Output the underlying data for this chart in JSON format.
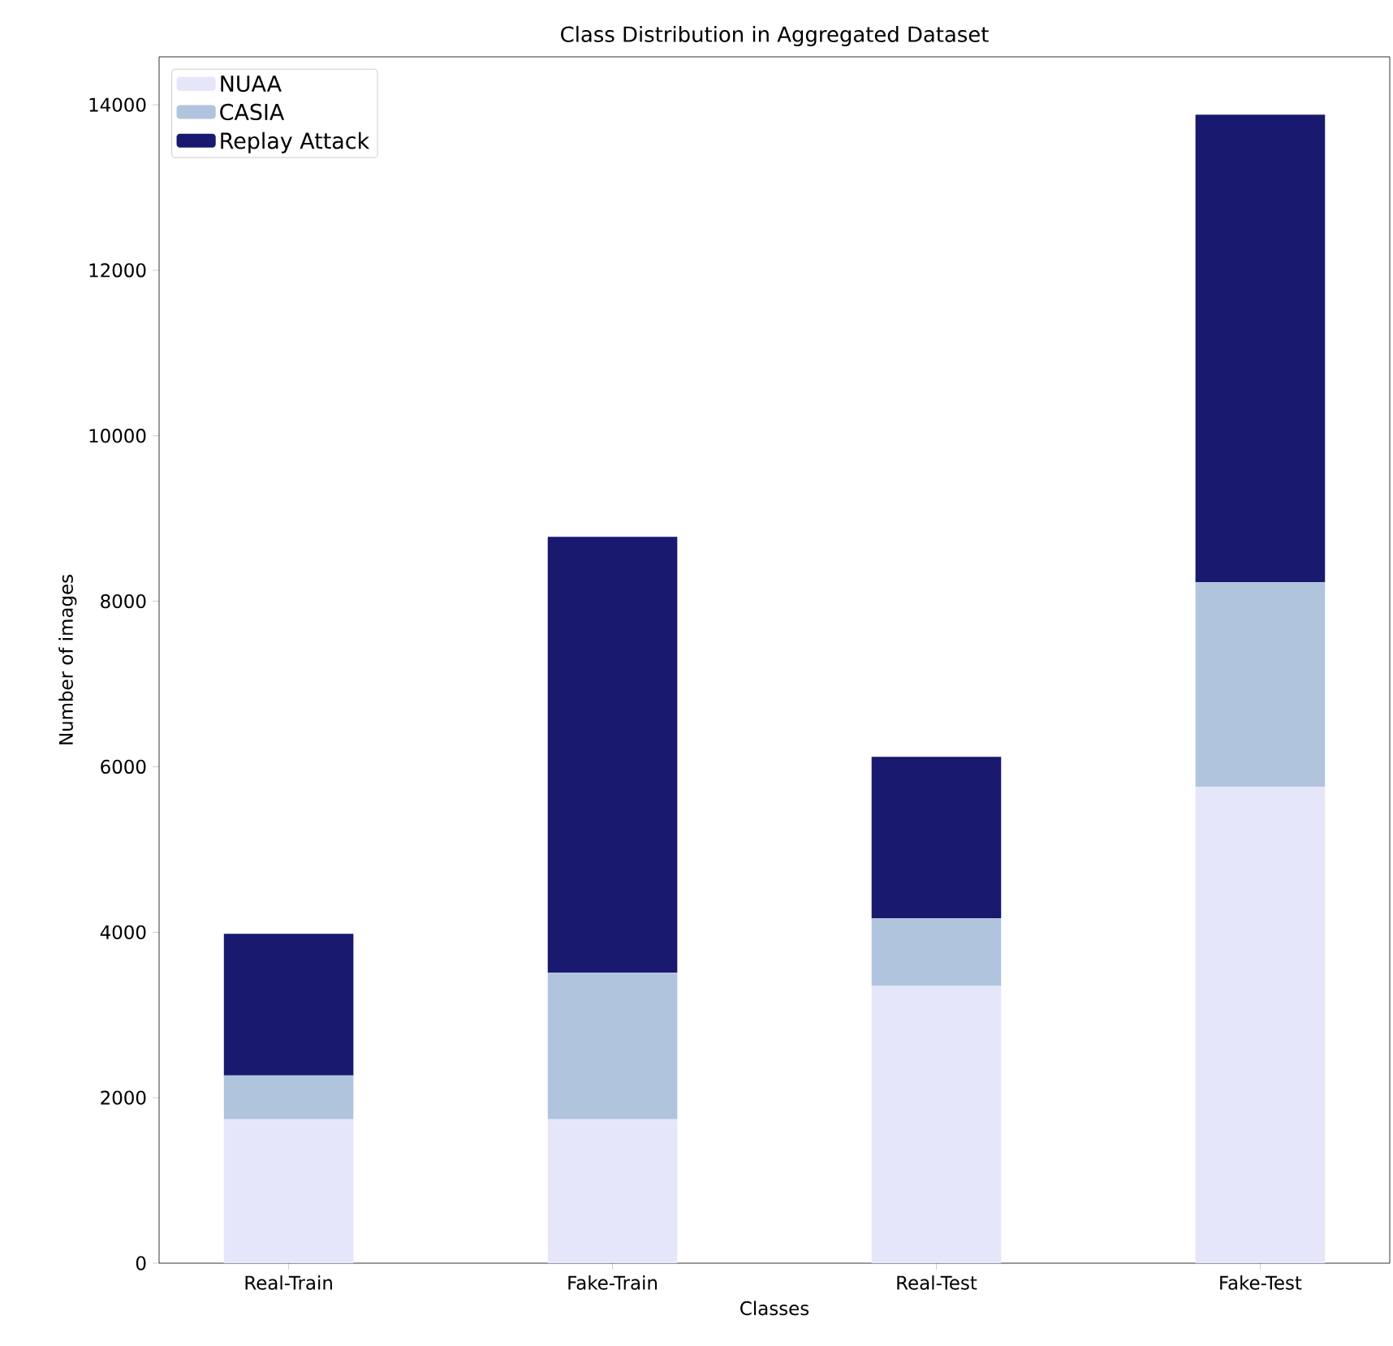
{
  "chart_data": {
    "type": "bar",
    "title": "Class Distribution in Aggregated Dataset",
    "xlabel": "Classes",
    "ylabel": "Number of images",
    "categories": [
      "Real-Train",
      "Fake-Train",
      "Real-Test",
      "Fake-Test"
    ],
    "stacked": true,
    "series": [
      {
        "name": "NUAA",
        "color": "#e6e6fa",
        "values": [
          1740,
          1740,
          3350,
          5760
        ]
      },
      {
        "name": "CASIA",
        "color": "#b0c4de",
        "values": [
          530,
          1770,
          820,
          2470
        ]
      },
      {
        "name": "Replay Attack",
        "color": "#191970",
        "values": [
          1710,
          5270,
          1950,
          5650
        ]
      }
    ],
    "ylim": [
      0,
      14580
    ],
    "yticks": [
      0,
      2000,
      4000,
      6000,
      8000,
      10000,
      12000,
      14000
    ],
    "grid": false,
    "legend": "top left"
  }
}
